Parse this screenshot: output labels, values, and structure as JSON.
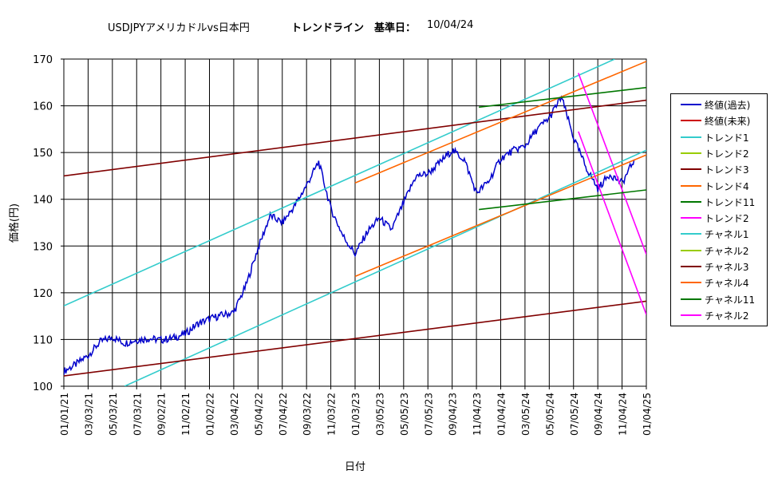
{
  "title": {
    "main": "USDJPYアメリカドルvs日本円",
    "sub": "トレンドライン　基準日：",
    "date": "10/04/24"
  },
  "chart_data": {
    "type": "line",
    "title": "USDJPYアメリカドルvs日本円　トレンドライン　基準日：10/04/24",
    "xlabel": "日付",
    "ylabel": "価格(円)",
    "ylim": [
      100,
      170
    ],
    "yticks": [
      100,
      110,
      120,
      130,
      140,
      150,
      160,
      170
    ],
    "xticks": [
      "01/01/21",
      "03/03/21",
      "05/03/21",
      "07/03/21",
      "09/02/21",
      "11/02/21",
      "01/02/22",
      "03/04/22",
      "05/04/22",
      "07/04/22",
      "09/03/22",
      "11/03/22",
      "01/03/23",
      "03/05/23",
      "05/05/23",
      "07/05/23",
      "09/04/23",
      "11/04/23",
      "01/04/24",
      "03/05/24",
      "05/05/24",
      "07/05/24",
      "09/04/24",
      "11/04/24",
      "01/04/25"
    ],
    "grid": true,
    "legend_position": "right",
    "series": [
      {
        "name": "終値(過去)",
        "color": "#0000cc",
        "kind": "price",
        "x": [
          0,
          1,
          2,
          3,
          4,
          5,
          6,
          7,
          8,
          9,
          10,
          11,
          12,
          13,
          14,
          15,
          16,
          17,
          18,
          19,
          20,
          21,
          22,
          23,
          24,
          25,
          26,
          27,
          28,
          29,
          30,
          31,
          32,
          33,
          34,
          35,
          36,
          37,
          38,
          39,
          40,
          41,
          42,
          43,
          44,
          45,
          46,
          47
        ],
        "y": [
          103.2,
          104.7,
          106.6,
          109.5,
          110.5,
          109.2,
          109.9,
          110.2,
          109.9,
          110.3,
          111.2,
          113.3,
          114.4,
          115.2,
          115.8,
          121.5,
          129.5,
          136.5,
          135.0,
          138.5,
          143.0,
          148.0,
          138.0,
          132.2,
          128.3,
          133.0,
          136.0,
          133.5,
          139.2,
          144.9,
          145.5,
          147.9,
          150.5,
          148.5,
          141.3,
          143.8,
          148.7,
          150.4,
          151.4,
          155.0,
          157.4,
          161.9,
          153.2,
          147.0,
          142.3,
          145.4,
          143.4,
          148.5
        ]
      },
      {
        "name": "終値(未来)",
        "color": "#cc0000",
        "kind": "none",
        "x": [],
        "y": []
      },
      {
        "name": "トレンド1",
        "color": "#33cccc",
        "kind": "line",
        "x": [
          0,
          22.7
        ],
        "y": [
          117.2,
          170.0
        ]
      },
      {
        "name": "トレンド2",
        "color": "#99cc00",
        "kind": "none",
        "x": [],
        "y": []
      },
      {
        "name": "トレンド3",
        "color": "#800000",
        "kind": "line",
        "x": [
          0,
          24
        ],
        "y": [
          145.0,
          161.2
        ]
      },
      {
        "name": "トレンド4",
        "color": "#ff6600",
        "kind": "line",
        "x": [
          12,
          24
        ],
        "y": [
          143.5,
          169.5
        ]
      },
      {
        "name": "トレンド11",
        "color": "#007700",
        "kind": "line",
        "x": [
          17.1,
          24
        ],
        "y": [
          159.7,
          163.9
        ]
      },
      {
        "name": "トレンド2",
        "color": "#ff00ff",
        "kind": "line",
        "x": [
          21.2,
          24
        ],
        "y": [
          167.0,
          128.2
        ]
      },
      {
        "name": "チャネル1",
        "color": "#33cccc",
        "kind": "line",
        "x": [
          2.5,
          24
        ],
        "y": [
          100.0,
          150.5
        ]
      },
      {
        "name": "チャネル2",
        "color": "#99cc00",
        "kind": "none",
        "x": [],
        "y": []
      },
      {
        "name": "チャネル3",
        "color": "#800000",
        "kind": "line",
        "x": [
          0,
          24
        ],
        "y": [
          102.2,
          118.2
        ]
      },
      {
        "name": "チャネル4",
        "color": "#ff6600",
        "kind": "line",
        "x": [
          12,
          24
        ],
        "y": [
          123.5,
          149.5
        ]
      },
      {
        "name": "チャネル11",
        "color": "#007700",
        "kind": "line",
        "x": [
          17.1,
          24
        ],
        "y": [
          137.8,
          142.0
        ]
      },
      {
        "name": "チャネル2",
        "color": "#ff00ff",
        "kind": "line",
        "x": [
          21.2,
          24
        ],
        "y": [
          154.5,
          115.3
        ]
      }
    ]
  }
}
